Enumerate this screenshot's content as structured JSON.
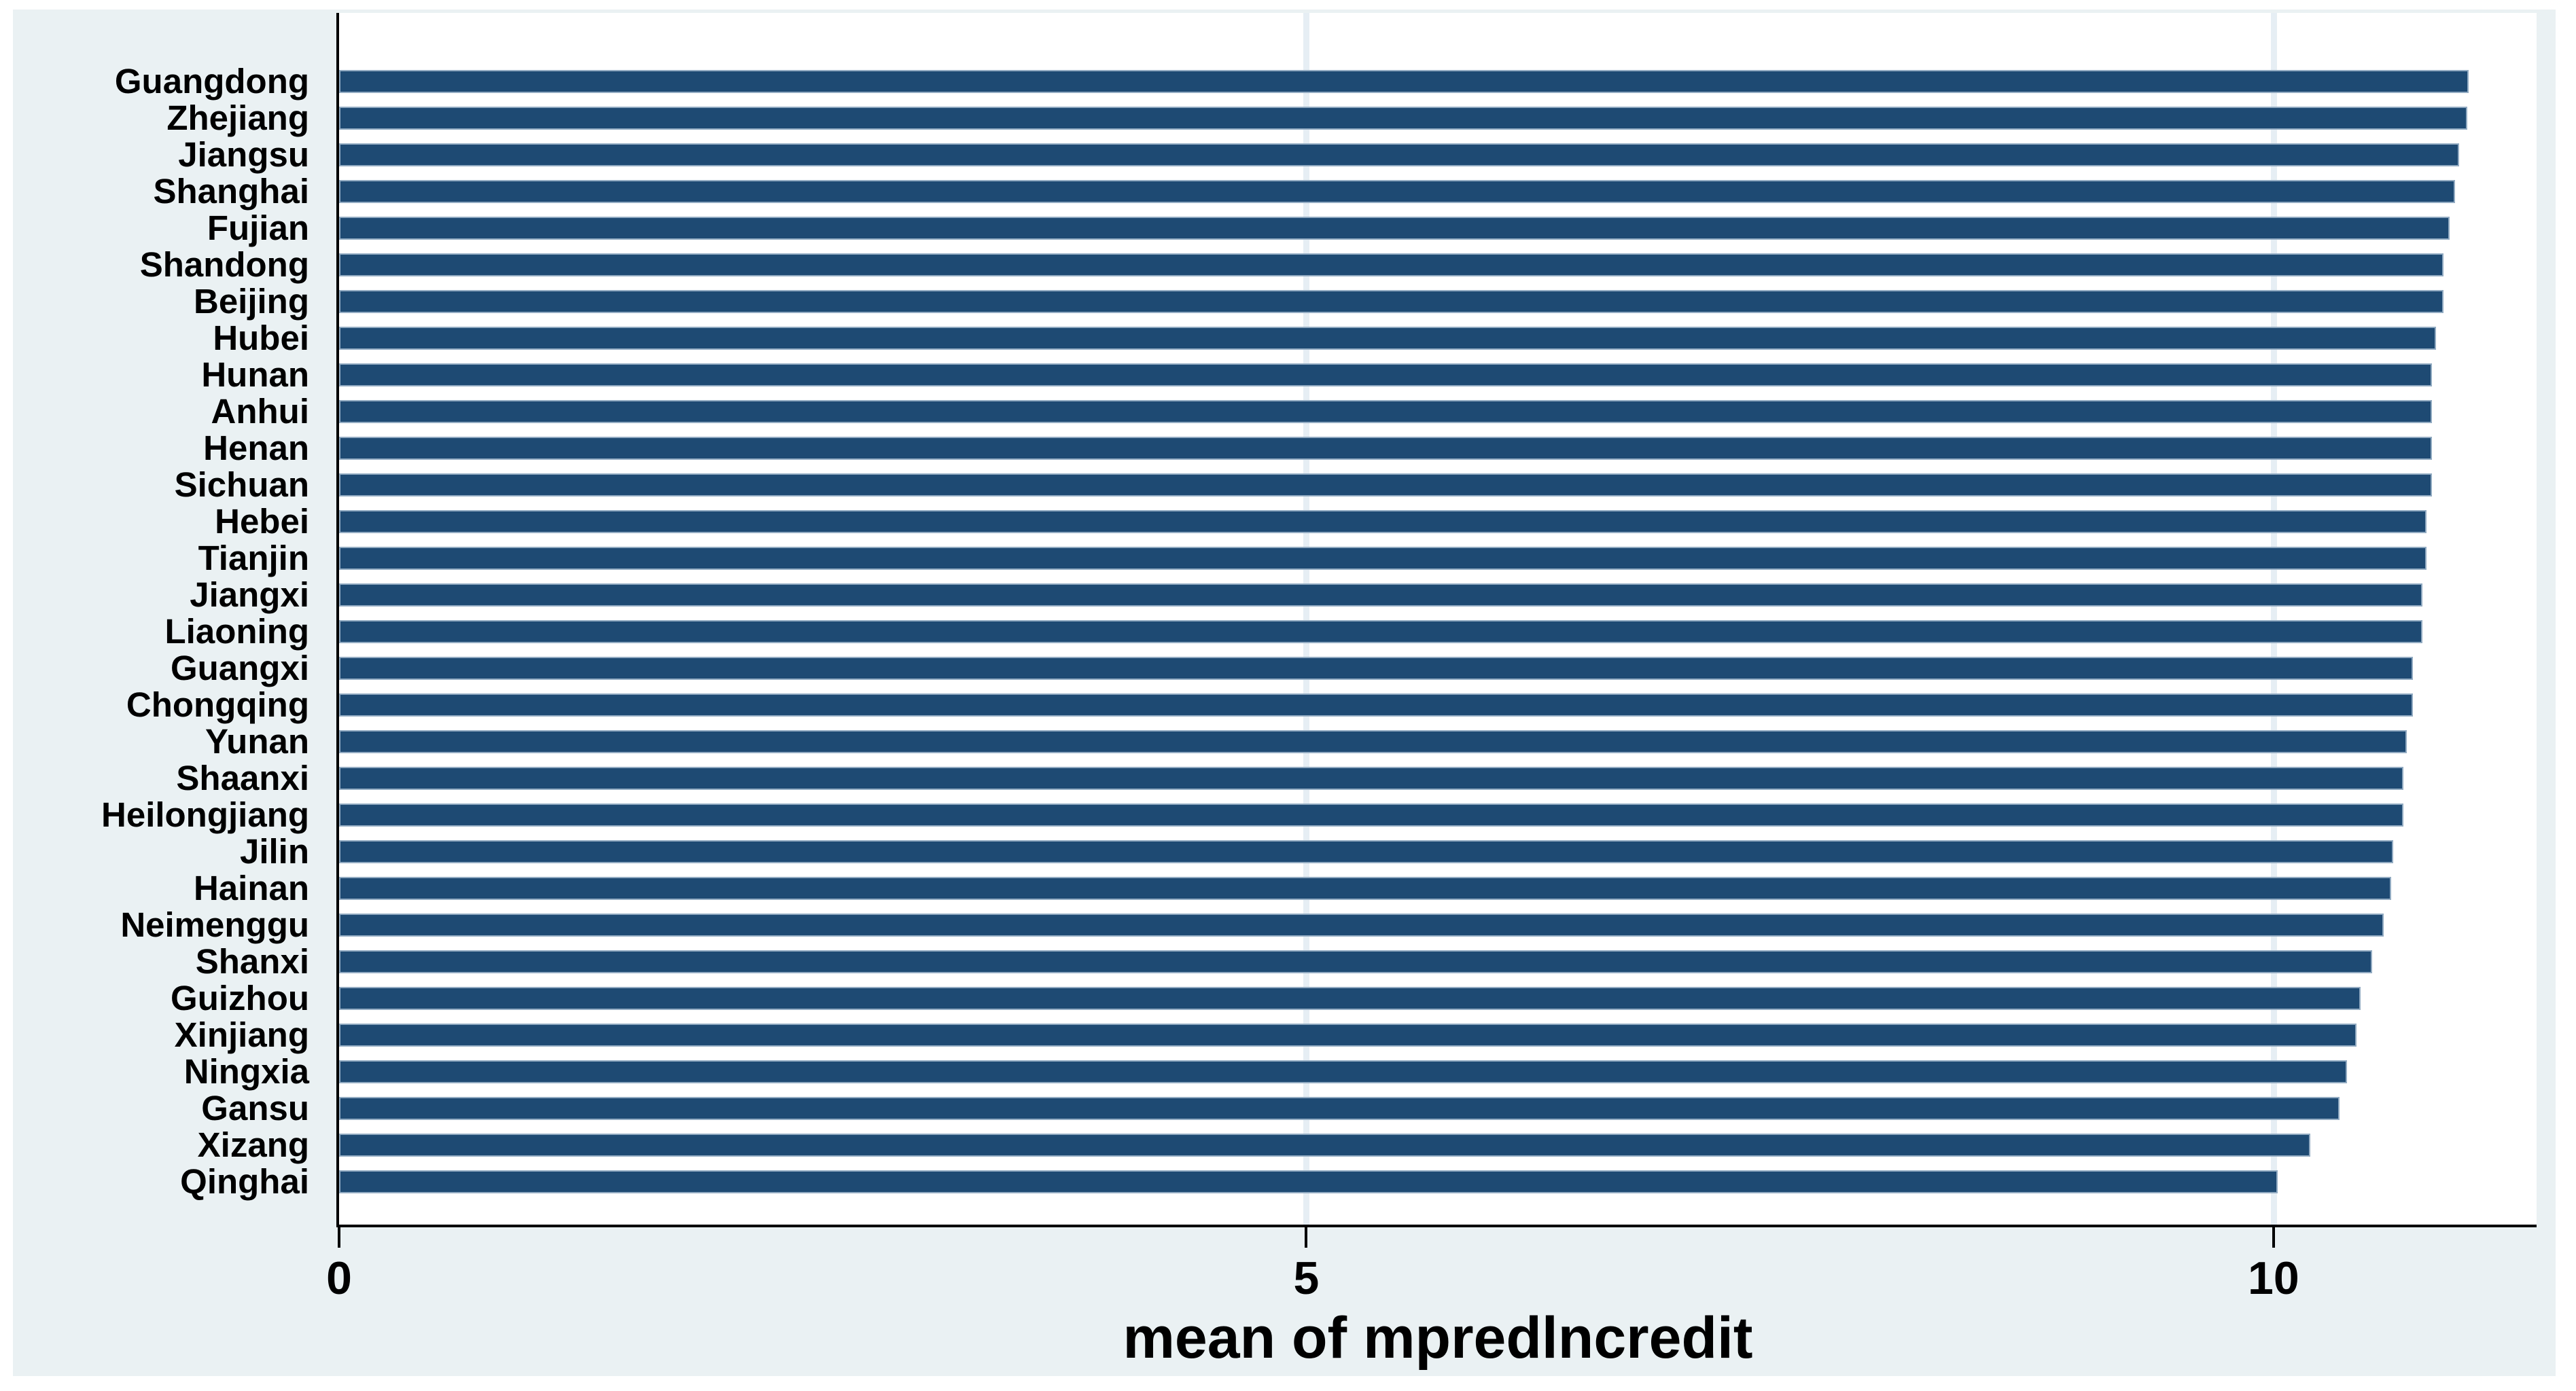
{
  "chart_data": {
    "type": "bar",
    "orientation": "horizontal",
    "title": "",
    "xlabel": "mean of mpredlncredit",
    "ylabel": "",
    "categories": [
      "Guangdong",
      "Zhejiang",
      "Jiangsu",
      "Shanghai",
      "Fujian",
      "Shandong",
      "Beijing",
      "Hubei",
      "Hunan",
      "Anhui",
      "Henan",
      "Sichuan",
      "Hebei",
      "Tianjin",
      "Jiangxi",
      "Liaoning",
      "Guangxi",
      "Chongqing",
      "Yunan",
      "Shaanxi",
      "Heilongjiang",
      "Jilin",
      "Hainan",
      "Neimenggu",
      "Shanxi",
      "Guizhou",
      "Xinjiang",
      "Ningxia",
      "Gansu",
      "Xizang",
      "Qinghai"
    ],
    "values": [
      11.01,
      11.0,
      10.96,
      10.94,
      10.91,
      10.88,
      10.88,
      10.84,
      10.82,
      10.82,
      10.82,
      10.82,
      10.79,
      10.79,
      10.77,
      10.77,
      10.72,
      10.72,
      10.69,
      10.67,
      10.67,
      10.62,
      10.61,
      10.57,
      10.51,
      10.45,
      10.43,
      10.38,
      10.34,
      10.19,
      10.02
    ],
    "xlim": [
      0,
      11.36
    ],
    "xticks": [
      0,
      5,
      10
    ],
    "grid": "vertical-light",
    "legend": "none",
    "colors": {
      "bar_fill": "#1e4a73",
      "bar_border": "#92abc2",
      "graph_background": "#eaf1f3",
      "plot_background": "#ffffff",
      "gridline": "#e6eef4",
      "axis": "#000000",
      "text": "#000000"
    }
  }
}
